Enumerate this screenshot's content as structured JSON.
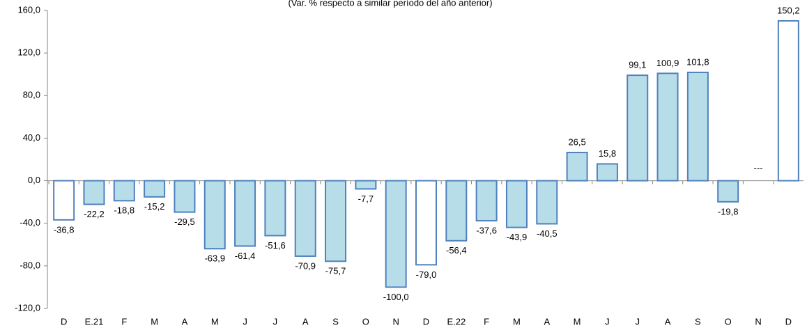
{
  "chart_data": {
    "type": "bar",
    "subtitle": "(Var. % respecto a similar período del año anterior)",
    "categories": [
      "D",
      "E.21",
      "F",
      "M",
      "A",
      "M",
      "J",
      "J",
      "A",
      "S",
      "O",
      "N",
      "D",
      "E.22",
      "F",
      "M",
      "A",
      "M",
      "J",
      "J",
      "A",
      "S",
      "O",
      "N",
      "D"
    ],
    "values": [
      -36.8,
      -22.2,
      -18.8,
      -15.2,
      -29.5,
      -63.9,
      -61.4,
      -51.6,
      -70.9,
      -75.7,
      -7.7,
      -100.0,
      -79.0,
      -56.4,
      -37.6,
      -43.9,
      -40.5,
      26.5,
      15.8,
      99.1,
      100.9,
      101.8,
      -19.8,
      null,
      150.2
    ],
    "value_labels": [
      "-36,8",
      "-22,2",
      "-18,8",
      "-15,2",
      "-29,5",
      "-63,9",
      "-61,4",
      "-51,6",
      "-70,9",
      "-75,7",
      "-7,7",
      "-100,0",
      "-79,0",
      "-56,4",
      "-37,6",
      "-43,9",
      "-40,5",
      "26,5",
      "15,8",
      "99,1",
      "100,9",
      "101,8",
      "-19,8",
      "---",
      "150,2"
    ],
    "colors": [
      "#ffffff",
      "#b7dde8",
      "#b7dde8",
      "#b7dde8",
      "#b7dde8",
      "#b7dde8",
      "#b7dde8",
      "#b7dde8",
      "#b7dde8",
      "#b7dde8",
      "#b7dde8",
      "#b7dde8",
      "#ffffff",
      "#b7dde8",
      "#b7dde8",
      "#b7dde8",
      "#b7dde8",
      "#b7dde8",
      "#b7dde8",
      "#b7dde8",
      "#b7dde8",
      "#b7dde8",
      "#b7dde8",
      "#b7dde8",
      "#ffffff"
    ],
    "border_color": "#4f81bd",
    "ylim": [
      -120,
      160
    ],
    "yticks": [
      {
        "value": -120,
        "label": "-120,0"
      },
      {
        "value": -80,
        "label": "-80,0"
      },
      {
        "value": -40,
        "label": "-40,0"
      },
      {
        "value": 0,
        "label": "0,0"
      },
      {
        "value": 40,
        "label": "40,0"
      },
      {
        "value": 80,
        "label": "80,0"
      },
      {
        "value": 120,
        "label": "120,0"
      },
      {
        "value": 160,
        "label": "160,0"
      }
    ]
  }
}
